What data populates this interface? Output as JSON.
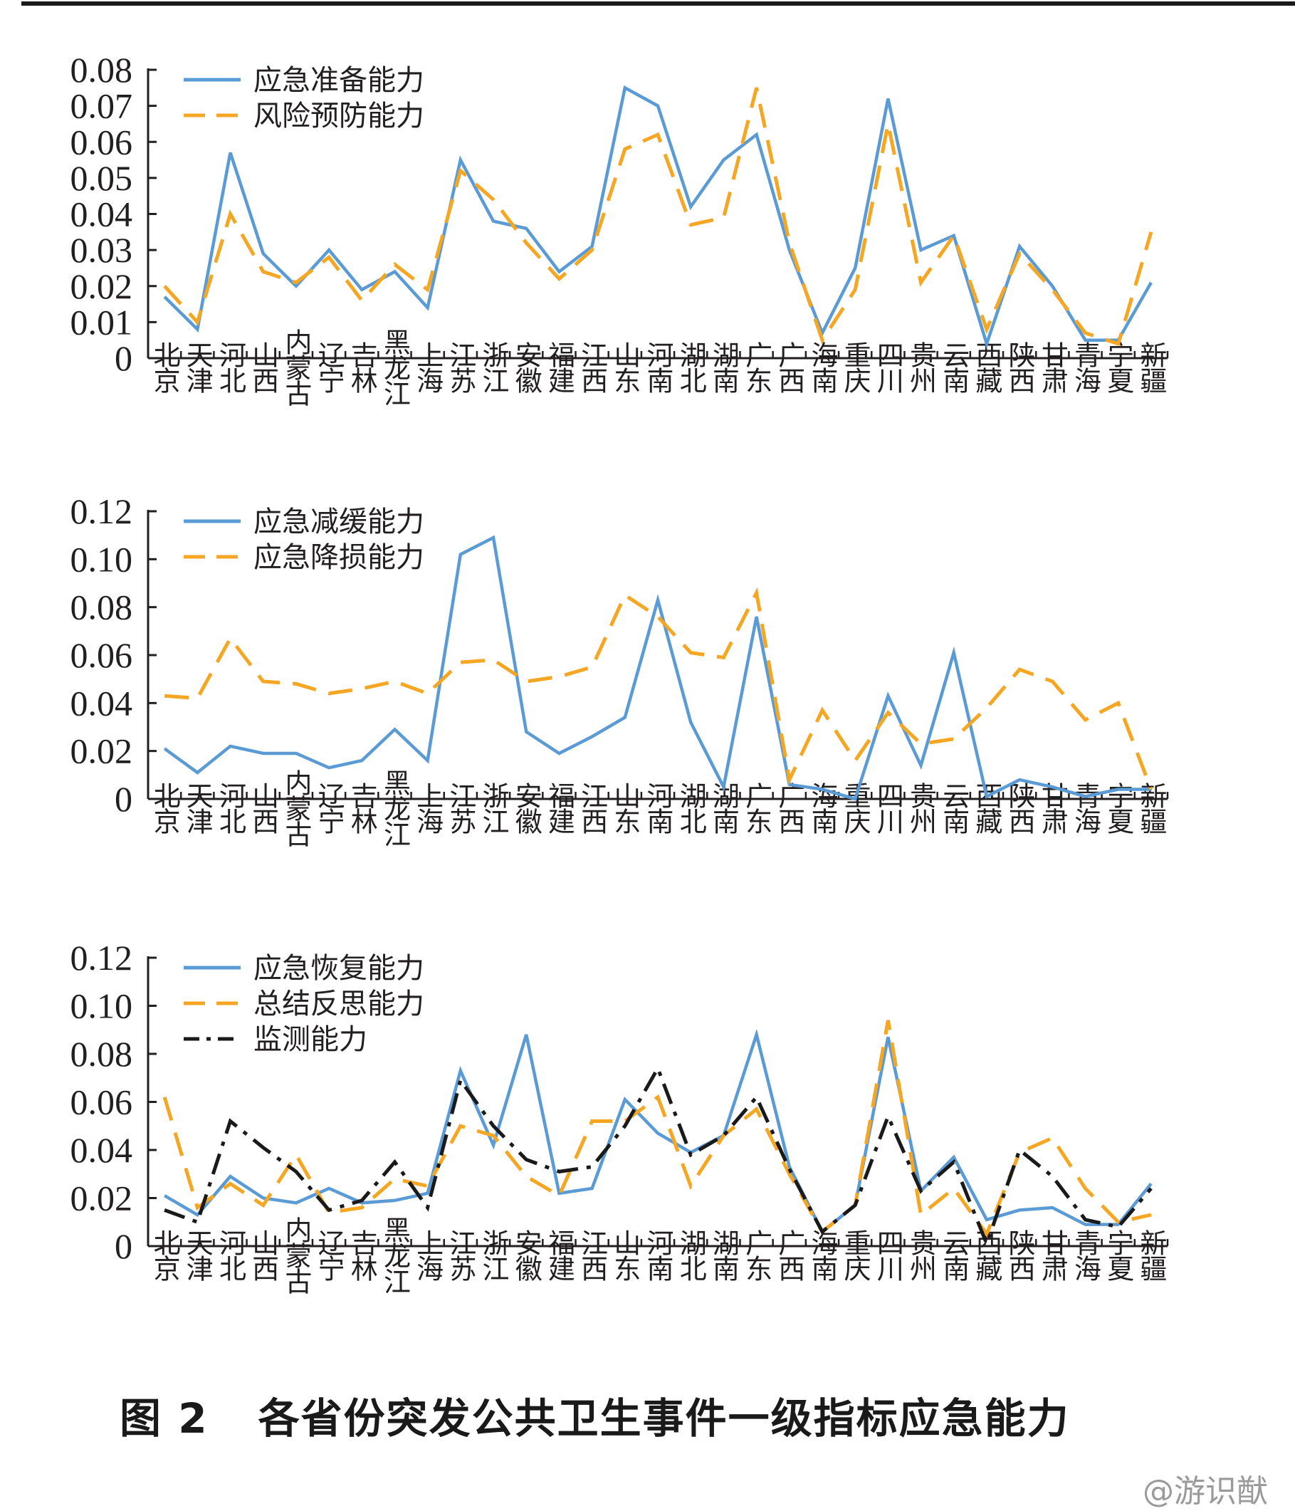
{
  "caption": {
    "figure_no": "图 2",
    "title": "各省份突发公共卫生事件一级指标应急能力"
  },
  "watermark": "@游识猷",
  "colors": {
    "blue": "#5b9bd5",
    "orange": "#f5a623",
    "black": "#1a1a1a"
  },
  "chart_data": [
    {
      "type": "line",
      "categories": [
        "北京",
        "天津",
        "河北",
        "山西",
        "内蒙古",
        "辽宁",
        "吉林",
        "黑龙江",
        "上海",
        "江苏",
        "浙江",
        "安徽",
        "福建",
        "江西",
        "山东",
        "河南",
        "湖北",
        "湖南",
        "广东",
        "广西",
        "海南",
        "重庆",
        "四川",
        "贵州",
        "云南",
        "西藏",
        "陕西",
        "甘肃",
        "青海",
        "宁夏",
        "新疆"
      ],
      "ylim": [
        0,
        0.08
      ],
      "yticks": [
        "0.08",
        "0.07",
        "0.06",
        "0.05",
        "0.04",
        "0.03",
        "0.02",
        "0.01",
        "0"
      ],
      "legend_position": "top-left",
      "series": [
        {
          "name": "应急准备能力",
          "style": "solid",
          "color": "#5b9bd5",
          "values": [
            0.017,
            0.008,
            0.057,
            0.029,
            0.02,
            0.03,
            0.019,
            0.024,
            0.014,
            0.055,
            0.038,
            0.036,
            0.024,
            0.031,
            0.075,
            0.07,
            0.042,
            0.055,
            0.062,
            0.03,
            0.007,
            0.025,
            0.072,
            0.03,
            0.034,
            0.004,
            0.031,
            0.02,
            0.005,
            0.005,
            0.021
          ]
        },
        {
          "name": "风险预防能力",
          "style": "dashed",
          "color": "#f5a623",
          "values": [
            0.02,
            0.01,
            0.04,
            0.024,
            0.021,
            0.028,
            0.016,
            0.026,
            0.019,
            0.052,
            0.044,
            0.032,
            0.022,
            0.03,
            0.058,
            0.062,
            0.037,
            0.039,
            0.075,
            0.032,
            0.005,
            0.019,
            0.065,
            0.021,
            0.034,
            0.008,
            0.029,
            0.019,
            0.007,
            0.004,
            0.035
          ]
        }
      ]
    },
    {
      "type": "line",
      "categories": [
        "北京",
        "天津",
        "河北",
        "山西",
        "内蒙古",
        "辽宁",
        "吉林",
        "黑龙江",
        "上海",
        "江苏",
        "浙江",
        "安徽",
        "福建",
        "江西",
        "山东",
        "河南",
        "湖北",
        "湖南",
        "广东",
        "广西",
        "海南",
        "重庆",
        "四川",
        "贵州",
        "云南",
        "西藏",
        "陕西",
        "甘肃",
        "青海",
        "宁夏",
        "新疆"
      ],
      "ylim": [
        0,
        0.12
      ],
      "yticks": [
        "0.12",
        "0.10",
        "0.08",
        "0.06",
        "0.04",
        "0.02",
        "0"
      ],
      "legend_position": "top-left",
      "series": [
        {
          "name": "应急减缓能力",
          "style": "solid",
          "color": "#5b9bd5",
          "values": [
            0.021,
            0.011,
            0.022,
            0.019,
            0.019,
            0.013,
            0.016,
            0.029,
            0.016,
            0.102,
            0.109,
            0.028,
            0.019,
            0.026,
            0.034,
            0.083,
            0.032,
            0.005,
            0.076,
            0.006,
            0.004,
            0.0,
            0.043,
            0.014,
            0.061,
            0.001,
            0.008,
            0.005,
            0.001,
            0.004,
            0.004
          ]
        },
        {
          "name": "应急降损能力",
          "style": "dashed",
          "color": "#f5a623",
          "values": [
            0.043,
            0.042,
            0.067,
            0.049,
            0.048,
            0.044,
            0.046,
            0.049,
            0.044,
            0.057,
            0.058,
            0.049,
            0.051,
            0.055,
            0.085,
            0.076,
            0.061,
            0.059,
            0.086,
            0.008,
            0.037,
            0.016,
            0.036,
            0.023,
            0.025,
            0.038,
            0.054,
            0.049,
            0.033,
            0.04,
            0.004
          ]
        }
      ]
    },
    {
      "type": "line",
      "categories": [
        "北京",
        "天津",
        "河北",
        "山西",
        "内蒙古",
        "辽宁",
        "吉林",
        "黑龙江",
        "上海",
        "江苏",
        "浙江",
        "安徽",
        "福建",
        "江西",
        "山东",
        "河南",
        "湖北",
        "湖南",
        "广东",
        "广西",
        "海南",
        "重庆",
        "四川",
        "贵州",
        "云南",
        "西藏",
        "陕西",
        "甘肃",
        "青海",
        "宁夏",
        "新疆"
      ],
      "ylim": [
        0,
        0.12
      ],
      "yticks": [
        "0.12",
        "0.10",
        "0.08",
        "0.06",
        "0.04",
        "0.02",
        "0"
      ],
      "legend_position": "top-left",
      "series": [
        {
          "name": "应急恢复能力",
          "style": "solid",
          "color": "#5b9bd5",
          "values": [
            0.021,
            0.013,
            0.029,
            0.02,
            0.018,
            0.024,
            0.018,
            0.019,
            0.022,
            0.073,
            0.042,
            0.088,
            0.022,
            0.024,
            0.061,
            0.047,
            0.039,
            0.046,
            0.088,
            0.033,
            0.006,
            0.017,
            0.087,
            0.023,
            0.037,
            0.011,
            0.015,
            0.016,
            0.009,
            0.009,
            0.026
          ]
        },
        {
          "name": "总结反思能力",
          "style": "dashed",
          "color": "#f5a623",
          "values": [
            0.062,
            0.016,
            0.026,
            0.017,
            0.038,
            0.014,
            0.016,
            0.028,
            0.025,
            0.05,
            0.046,
            0.029,
            0.021,
            0.052,
            0.052,
            0.062,
            0.025,
            0.046,
            0.057,
            0.03,
            0.006,
            0.017,
            0.094,
            0.013,
            0.024,
            0.005,
            0.039,
            0.045,
            0.024,
            0.01,
            0.013
          ]
        },
        {
          "name": "监测能力",
          "style": "dashdot",
          "color": "#1a1a1a",
          "values": [
            0.015,
            0.01,
            0.052,
            0.041,
            0.031,
            0.015,
            0.019,
            0.035,
            0.016,
            0.069,
            0.05,
            0.036,
            0.031,
            0.033,
            0.05,
            0.074,
            0.038,
            0.046,
            0.062,
            0.032,
            0.006,
            0.017,
            0.054,
            0.023,
            0.035,
            0.001,
            0.04,
            0.029,
            0.011,
            0.008,
            0.024
          ]
        }
      ]
    }
  ]
}
